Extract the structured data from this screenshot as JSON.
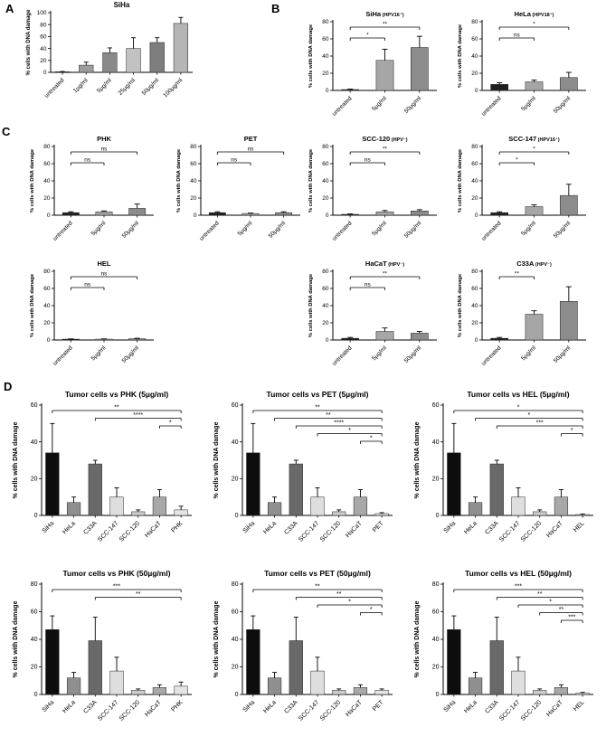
{
  "panels": {
    "A": "A",
    "B": "B",
    "C": "C",
    "D": "D"
  },
  "ylabel": "% cells with DNA damage",
  "chart_data": [
    {
      "id": "A1",
      "panel": "A",
      "type": "bar",
      "title": "SiHa",
      "title_note": "",
      "ylabel": "% cells with DNA damage",
      "ylim": [
        0,
        100
      ],
      "yticks": [
        0,
        20,
        40,
        60,
        80,
        100
      ],
      "categories": [
        "untreated",
        "1µg/ml",
        "5µg/ml",
        "25µg/ml",
        "50µg/ml",
        "100µg/ml"
      ],
      "values": [
        1,
        12,
        33,
        40,
        50,
        82
      ],
      "errors": [
        0.5,
        5,
        8,
        18,
        8,
        10
      ],
      "colors": [
        "#2e2e2e",
        "#9c9c9c",
        "#8a8a8a",
        "#c2c2c2",
        "#7d7d7d",
        "#b5b5b5"
      ],
      "sig": []
    },
    {
      "id": "B1",
      "panel": "B",
      "type": "bar",
      "title": "SiHa",
      "title_note": "(HPV16⁺)",
      "ylabel": "% cells with DNA damage",
      "ylim": [
        0,
        80
      ],
      "yticks": [
        0,
        20,
        40,
        60,
        80
      ],
      "categories": [
        "untreated",
        "5µg/ml",
        "50µg/ml"
      ],
      "values": [
        1,
        35,
        50
      ],
      "errors": [
        0.5,
        13,
        13
      ],
      "colors": [
        "#1f1f1f",
        "#a6a6a6",
        "#8c8c8c"
      ],
      "sig": [
        {
          "from": 0,
          "to": 2,
          "label": "**",
          "row": 0
        },
        {
          "from": 0,
          "to": 1,
          "label": "*",
          "row": 1
        }
      ]
    },
    {
      "id": "B2",
      "panel": "B",
      "type": "bar",
      "title": "HeLa",
      "title_note": "(HPV18⁺)",
      "ylabel": "% cells with DNA damage",
      "ylim": [
        0,
        80
      ],
      "yticks": [
        0,
        20,
        40,
        60,
        80
      ],
      "categories": [
        "untreated",
        "5µg/ml",
        "50µg/ml"
      ],
      "values": [
        7,
        10,
        15
      ],
      "errors": [
        2,
        2,
        6
      ],
      "colors": [
        "#1f1f1f",
        "#a6a6a6",
        "#8c8c8c"
      ],
      "sig": [
        {
          "from": 0,
          "to": 2,
          "label": "*",
          "row": 0
        },
        {
          "from": 0,
          "to": 1,
          "label": "ns",
          "row": 1
        }
      ]
    },
    {
      "id": "B3",
      "panel": "B",
      "type": "bar",
      "title": "SCC-120",
      "title_note": "(HPV⁻)",
      "ylabel": "% cells with DNA damage",
      "ylim": [
        0,
        80
      ],
      "yticks": [
        0,
        20,
        40,
        60,
        80
      ],
      "categories": [
        "untreated",
        "5µg/ml",
        "50µg/ml"
      ],
      "values": [
        1,
        4,
        5
      ],
      "errors": [
        0.5,
        1.5,
        1.5
      ],
      "colors": [
        "#1f1f1f",
        "#a6a6a6",
        "#8c8c8c"
      ],
      "sig": [
        {
          "from": 0,
          "to": 2,
          "label": "**",
          "row": 0
        },
        {
          "from": 0,
          "to": 1,
          "label": "ns",
          "row": 1
        }
      ]
    },
    {
      "id": "B4",
      "panel": "B",
      "type": "bar",
      "title": "SCC-147",
      "title_note": "(HPV16⁺)",
      "ylabel": "% cells with DNA damage",
      "ylim": [
        0,
        80
      ],
      "yticks": [
        0,
        20,
        40,
        60,
        80
      ],
      "categories": [
        "untreated",
        "5µg/ml",
        "50µg/ml"
      ],
      "values": [
        3,
        10,
        23
      ],
      "errors": [
        1,
        2,
        13
      ],
      "colors": [
        "#1f1f1f",
        "#a6a6a6",
        "#8c8c8c"
      ],
      "sig": [
        {
          "from": 0,
          "to": 2,
          "label": "*",
          "row": 0
        },
        {
          "from": 0,
          "to": 1,
          "label": "*",
          "row": 1
        }
      ]
    },
    {
      "id": "B5",
      "panel": "B",
      "type": "bar",
      "title": "HaCaT",
      "title_note": "(HPV⁻)",
      "ylabel": "% cells with DNA damage",
      "ylim": [
        0,
        80
      ],
      "yticks": [
        0,
        20,
        40,
        60,
        80
      ],
      "categories": [
        "untreated",
        "5µg/ml",
        "50µg/ml"
      ],
      "values": [
        2,
        10,
        8
      ],
      "errors": [
        1,
        4,
        2
      ],
      "colors": [
        "#1f1f1f",
        "#a6a6a6",
        "#8c8c8c"
      ],
      "sig": [
        {
          "from": 0,
          "to": 2,
          "label": "**",
          "row": 0
        },
        {
          "from": 0,
          "to": 1,
          "label": "ns",
          "row": 1
        }
      ]
    },
    {
      "id": "B6",
      "panel": "B",
      "type": "bar",
      "title": "C33A",
      "title_note": "(HPV⁻)",
      "ylabel": "% cells with DNA damage",
      "ylim": [
        0,
        80
      ],
      "yticks": [
        0,
        20,
        40,
        60,
        80
      ],
      "categories": [
        "untreated",
        "5µg/ml",
        "50µg/ml"
      ],
      "values": [
        2,
        30,
        45
      ],
      "errors": [
        1,
        4,
        17
      ],
      "colors": [
        "#1f1f1f",
        "#a6a6a6",
        "#8c8c8c"
      ],
      "sig": [
        {
          "from": 0,
          "to": 1,
          "label": "**",
          "row": 0
        }
      ]
    },
    {
      "id": "C1",
      "panel": "C",
      "type": "bar",
      "title": "PHK",
      "title_note": "",
      "ylabel": "% cells with DNA damage",
      "ylim": [
        0,
        80
      ],
      "yticks": [
        0,
        20,
        40,
        60,
        80
      ],
      "categories": [
        "untreated",
        "5µg/ml",
        "50µg/ml"
      ],
      "values": [
        3,
        4,
        8
      ],
      "errors": [
        1,
        1,
        5
      ],
      "colors": [
        "#1f1f1f",
        "#a6a6a6",
        "#8c8c8c"
      ],
      "sig": [
        {
          "from": 0,
          "to": 2,
          "label": "ns",
          "row": 0
        },
        {
          "from": 0,
          "to": 1,
          "label": "ns",
          "row": 1
        }
      ]
    },
    {
      "id": "C2",
      "panel": "C",
      "type": "bar",
      "title": "PET",
      "title_note": "",
      "ylabel": "% cells with DNA damage",
      "ylim": [
        0,
        80
      ],
      "yticks": [
        0,
        20,
        40,
        60,
        80
      ],
      "categories": [
        "untreated",
        "5µg/ml",
        "50µg/ml"
      ],
      "values": [
        3,
        2,
        3
      ],
      "errors": [
        1,
        0.5,
        1
      ],
      "colors": [
        "#1f1f1f",
        "#a6a6a6",
        "#8c8c8c"
      ],
      "sig": [
        {
          "from": 0,
          "to": 2,
          "label": "ns",
          "row": 0
        },
        {
          "from": 0,
          "to": 1,
          "label": "ns",
          "row": 1
        }
      ]
    },
    {
      "id": "C3",
      "panel": "C",
      "type": "bar",
      "title": "HEL",
      "title_note": "",
      "ylabel": "% cells with DNA damage",
      "ylim": [
        0,
        80
      ],
      "yticks": [
        0,
        20,
        40,
        60,
        80
      ],
      "categories": [
        "untreated",
        "5µg/ml",
        "50µg/ml"
      ],
      "values": [
        1,
        1,
        1.5
      ],
      "errors": [
        0.3,
        0.3,
        0.5
      ],
      "colors": [
        "#1f1f1f",
        "#a6a6a6",
        "#8c8c8c"
      ],
      "sig": [
        {
          "from": 0,
          "to": 2,
          "label": "ns",
          "row": 0
        },
        {
          "from": 0,
          "to": 1,
          "label": "ns",
          "row": 1
        }
      ]
    },
    {
      "id": "D1",
      "panel": "D",
      "type": "bar",
      "title": "Tumor cells vs PHK (5µg/ml)",
      "title_note": "",
      "ylabel": "% cells with DNA damage",
      "ylim": [
        0,
        60
      ],
      "yticks": [
        0,
        20,
        40,
        60
      ],
      "categories": [
        "SiHa",
        "HeLa",
        "C33A",
        "SCC-147",
        "SCC-120",
        "HaCaT",
        "PHK"
      ],
      "values": [
        34,
        7,
        28,
        10,
        2,
        10,
        3
      ],
      "errors": [
        16,
        3,
        2,
        5,
        1,
        4,
        2
      ],
      "colors": [
        "#0d0d0d",
        "#8f8f8f",
        "#696969",
        "#dedede",
        "#cccccc",
        "#a8a8a8",
        "#e4e4e4"
      ],
      "sig": [
        {
          "from": 0,
          "to": 6,
          "label": "**",
          "row": 0
        },
        {
          "from": 2,
          "to": 6,
          "label": "****",
          "row": 1
        },
        {
          "from": 5,
          "to": 6,
          "label": "*",
          "row": 2
        }
      ]
    },
    {
      "id": "D2",
      "panel": "D",
      "type": "bar",
      "title": "Tumor cells vs PET (5µg/ml)",
      "title_note": "",
      "ylabel": "% cells with DNA damage",
      "ylim": [
        0,
        60
      ],
      "yticks": [
        0,
        20,
        40,
        60
      ],
      "categories": [
        "SiHa",
        "HeLa",
        "C33A",
        "SCC-147",
        "SCC-120",
        "HaCaT",
        "PET"
      ],
      "values": [
        34,
        7,
        28,
        10,
        2,
        10,
        1
      ],
      "errors": [
        16,
        3,
        2,
        5,
        1,
        4,
        0.5
      ],
      "colors": [
        "#0d0d0d",
        "#8f8f8f",
        "#696969",
        "#dedede",
        "#cccccc",
        "#a8a8a8",
        "#e4e4e4"
      ],
      "sig": [
        {
          "from": 0,
          "to": 6,
          "label": "**",
          "row": 0
        },
        {
          "from": 1,
          "to": 6,
          "label": "**",
          "row": 1
        },
        {
          "from": 2,
          "to": 6,
          "label": "****",
          "row": 2
        },
        {
          "from": 3,
          "to": 6,
          "label": "*",
          "row": 3
        },
        {
          "from": 5,
          "to": 6,
          "label": "*",
          "row": 4
        }
      ]
    },
    {
      "id": "D3",
      "panel": "D",
      "type": "bar",
      "title": "Tumor cells vs HEL (5µg/ml)",
      "title_note": "",
      "ylabel": "% cells with DNA damage",
      "ylim": [
        0,
        60
      ],
      "yticks": [
        0,
        20,
        40,
        60
      ],
      "categories": [
        "SiHa",
        "HeLa",
        "C33A",
        "SCC-147",
        "SCC-120",
        "HaCaT",
        "HEL"
      ],
      "values": [
        34,
        7,
        28,
        10,
        2,
        10,
        0.5
      ],
      "errors": [
        16,
        3,
        2,
        5,
        1,
        4,
        0.3
      ],
      "colors": [
        "#0d0d0d",
        "#8f8f8f",
        "#696969",
        "#dedede",
        "#cccccc",
        "#a8a8a8",
        "#e4e4e4"
      ],
      "sig": [
        {
          "from": 0,
          "to": 6,
          "label": "*",
          "row": 0
        },
        {
          "from": 1,
          "to": 6,
          "label": "*",
          "row": 1
        },
        {
          "from": 2,
          "to": 6,
          "label": "***",
          "row": 2
        },
        {
          "from": 5,
          "to": 6,
          "label": "*",
          "row": 3
        }
      ]
    },
    {
      "id": "D4",
      "panel": "D",
      "type": "bar",
      "title": "Tumor cells vs PHK (50µg/ml)",
      "title_note": "",
      "ylabel": "% cells with DNA damage",
      "ylim": [
        0,
        80
      ],
      "yticks": [
        0,
        20,
        40,
        60,
        80
      ],
      "categories": [
        "SiHa",
        "HeLa",
        "C33A",
        "SCC-147",
        "SCC-120",
        "HaCaT",
        "PHK"
      ],
      "values": [
        47,
        12,
        39,
        17,
        3,
        5,
        6
      ],
      "errors": [
        10,
        4,
        17,
        10,
        1,
        2,
        3
      ],
      "colors": [
        "#0d0d0d",
        "#8f8f8f",
        "#696969",
        "#dedede",
        "#cccccc",
        "#a8a8a8",
        "#e4e4e4"
      ],
      "sig": [
        {
          "from": 0,
          "to": 6,
          "label": "***",
          "row": 0
        },
        {
          "from": 2,
          "to": 6,
          "label": "**",
          "row": 1
        }
      ]
    },
    {
      "id": "D5",
      "panel": "D",
      "type": "bar",
      "title": "Tumor cells vs PET (50µg/ml)",
      "title_note": "",
      "ylabel": "% cells with DNA damage",
      "ylim": [
        0,
        80
      ],
      "yticks": [
        0,
        20,
        40,
        60,
        80
      ],
      "categories": [
        "SiHa",
        "HeLa",
        "C33A",
        "SCC-147",
        "SCC-120",
        "HaCaT",
        "PET"
      ],
      "values": [
        47,
        12,
        39,
        17,
        3,
        5,
        3
      ],
      "errors": [
        10,
        4,
        17,
        10,
        1,
        2,
        1
      ],
      "colors": [
        "#0d0d0d",
        "#8f8f8f",
        "#696969",
        "#dedede",
        "#cccccc",
        "#a8a8a8",
        "#e4e4e4"
      ],
      "sig": [
        {
          "from": 0,
          "to": 6,
          "label": "**",
          "row": 0
        },
        {
          "from": 2,
          "to": 6,
          "label": "**",
          "row": 1
        },
        {
          "from": 3,
          "to": 6,
          "label": "*",
          "row": 2
        },
        {
          "from": 5,
          "to": 6,
          "label": "*",
          "row": 3
        }
      ]
    },
    {
      "id": "D6",
      "panel": "D",
      "type": "bar",
      "title": "Tumor cells vs HEL (50µg/ml)",
      "title_note": "",
      "ylabel": "% cells with DNA damage",
      "ylim": [
        0,
        80
      ],
      "yticks": [
        0,
        20,
        40,
        60,
        80
      ],
      "categories": [
        "SiHa",
        "HeLa",
        "C33A",
        "SCC-147",
        "SCC-120",
        "HaCaT",
        "HEL"
      ],
      "values": [
        47,
        12,
        39,
        17,
        3,
        5,
        1
      ],
      "errors": [
        10,
        4,
        17,
        10,
        1,
        2,
        0.5
      ],
      "colors": [
        "#0d0d0d",
        "#8f8f8f",
        "#696969",
        "#dedede",
        "#cccccc",
        "#a8a8a8",
        "#e4e4e4"
      ],
      "sig": [
        {
          "from": 0,
          "to": 6,
          "label": "***",
          "row": 0
        },
        {
          "from": 2,
          "to": 6,
          "label": "**",
          "row": 1
        },
        {
          "from": 3,
          "to": 6,
          "label": "*",
          "row": 2
        },
        {
          "from": 4,
          "to": 6,
          "label": "**",
          "row": 3
        },
        {
          "from": 5,
          "to": 6,
          "label": "***",
          "row": 4
        }
      ]
    }
  ]
}
